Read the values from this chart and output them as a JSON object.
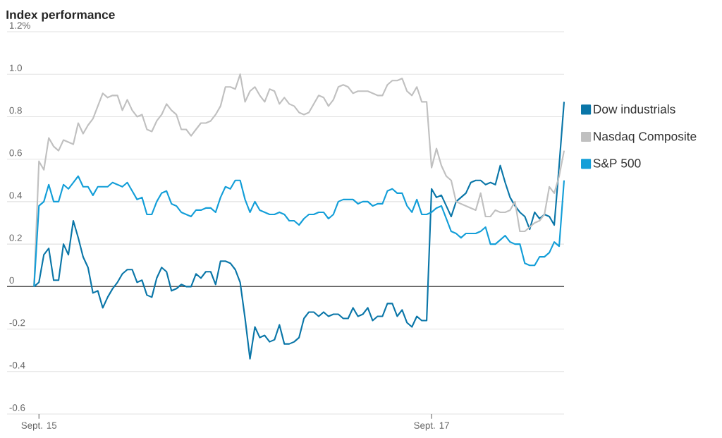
{
  "chart_data": {
    "type": "line",
    "title": "Index performance",
    "categories": [
      null,
      "Sept. 15",
      null,
      null,
      null,
      null,
      null,
      null,
      null,
      null,
      null,
      null,
      null,
      null,
      null,
      null,
      null,
      null,
      null,
      null,
      null,
      null,
      null,
      null,
      null,
      null,
      null,
      null,
      null,
      null,
      null,
      null,
      null,
      null,
      null,
      null,
      null,
      null,
      null,
      null,
      null,
      null,
      null,
      null,
      null,
      null,
      null,
      null,
      null,
      null,
      null,
      null,
      null,
      null,
      null,
      null,
      null,
      null,
      null,
      null,
      null,
      null,
      null,
      null,
      null,
      null,
      null,
      null,
      null,
      null,
      null,
      null,
      null,
      null,
      null,
      null,
      null,
      null,
      null,
      null,
      null,
      "Sept. 17",
      null,
      null,
      null,
      null,
      null,
      null,
      null,
      null,
      null,
      null,
      null,
      null,
      null,
      null,
      null,
      null,
      null,
      null,
      null,
      null,
      null,
      null,
      null,
      null,
      null,
      null,
      null
    ],
    "series": [
      {
        "name": "Dow industrials",
        "color": "#0a76a8",
        "values": [
          0,
          0.02,
          0.15,
          0.18,
          0.03,
          0.03,
          0.2,
          0.15,
          0.31,
          0.23,
          0.14,
          0.09,
          -0.03,
          -0.02,
          -0.1,
          -0.05,
          -0.01,
          0.02,
          0.06,
          0.08,
          0.08,
          0.02,
          0.03,
          -0.04,
          -0.05,
          0.04,
          0.09,
          0.07,
          -0.02,
          -0.01,
          0.01,
          0,
          0,
          0.06,
          0.04,
          0.07,
          0.07,
          0.01,
          0.12,
          0.12,
          0.11,
          0.08,
          0.02,
          -0.15,
          -0.34,
          -0.19,
          -0.24,
          -0.23,
          -0.26,
          -0.25,
          -0.18,
          -0.27,
          -0.27,
          -0.26,
          -0.24,
          -0.15,
          -0.12,
          -0.12,
          -0.14,
          -0.12,
          -0.14,
          -0.13,
          -0.13,
          -0.15,
          -0.15,
          -0.1,
          -0.14,
          -0.13,
          -0.1,
          -0.16,
          -0.14,
          -0.14,
          -0.08,
          -0.08,
          -0.14,
          -0.11,
          -0.17,
          -0.19,
          -0.14,
          -0.16,
          -0.16,
          0.46,
          0.42,
          0.43,
          0.38,
          0.33,
          0.4,
          0.42,
          0.44,
          0.49,
          0.5,
          0.5,
          0.48,
          0.49,
          0.48,
          0.57,
          0.49,
          0.42,
          0.38,
          0.35,
          0.33,
          0.27,
          0.35,
          0.32,
          0.34,
          0.33,
          0.29,
          0.57,
          0.87
        ]
      },
      {
        "name": "Nasdaq Composite",
        "color": "#c0c0c0",
        "values": [
          0,
          0.59,
          0.55,
          0.7,
          0.66,
          0.64,
          0.69,
          0.68,
          0.67,
          0.77,
          0.72,
          0.76,
          0.79,
          0.85,
          0.91,
          0.89,
          0.9,
          0.9,
          0.83,
          0.88,
          0.83,
          0.8,
          0.81,
          0.74,
          0.73,
          0.78,
          0.81,
          0.86,
          0.83,
          0.81,
          0.74,
          0.74,
          0.71,
          0.74,
          0.77,
          0.77,
          0.78,
          0.81,
          0.85,
          0.94,
          0.94,
          0.93,
          1.0,
          0.87,
          0.92,
          0.94,
          0.9,
          0.87,
          0.93,
          0.92,
          0.86,
          0.89,
          0.86,
          0.85,
          0.82,
          0.81,
          0.82,
          0.86,
          0.9,
          0.89,
          0.85,
          0.88,
          0.94,
          0.95,
          0.94,
          0.91,
          0.92,
          0.92,
          0.92,
          0.91,
          0.9,
          0.9,
          0.95,
          0.97,
          0.97,
          0.98,
          0.92,
          0.9,
          0.94,
          0.87,
          0.87,
          0.56,
          0.65,
          0.57,
          0.52,
          0.5,
          0.4,
          0.39,
          0.38,
          0.37,
          0.36,
          0.44,
          0.33,
          0.33,
          0.36,
          0.35,
          0.35,
          0.36,
          0.4,
          0.26,
          0.26,
          0.28,
          0.3,
          0.31,
          0.34,
          0.47,
          0.44,
          0.52,
          0.64
        ]
      },
      {
        "name": "S&P 500",
        "color": "#139ed8",
        "values": [
          0,
          0.38,
          0.4,
          0.48,
          0.4,
          0.4,
          0.48,
          0.46,
          0.49,
          0.52,
          0.47,
          0.47,
          0.43,
          0.47,
          0.47,
          0.47,
          0.49,
          0.48,
          0.47,
          0.49,
          0.45,
          0.41,
          0.42,
          0.34,
          0.34,
          0.4,
          0.44,
          0.45,
          0.39,
          0.38,
          0.35,
          0.34,
          0.33,
          0.36,
          0.36,
          0.37,
          0.37,
          0.35,
          0.42,
          0.47,
          0.46,
          0.5,
          0.5,
          0.41,
          0.35,
          0.4,
          0.36,
          0.35,
          0.34,
          0.34,
          0.35,
          0.34,
          0.31,
          0.31,
          0.29,
          0.32,
          0.34,
          0.34,
          0.35,
          0.35,
          0.32,
          0.34,
          0.4,
          0.41,
          0.41,
          0.41,
          0.39,
          0.4,
          0.4,
          0.38,
          0.39,
          0.39,
          0.45,
          0.46,
          0.44,
          0.44,
          0.38,
          0.35,
          0.41,
          0.34,
          0.34,
          0.35,
          0.37,
          0.38,
          0.32,
          0.26,
          0.25,
          0.23,
          0.25,
          0.25,
          0.25,
          0.26,
          0.28,
          0.2,
          0.2,
          0.22,
          0.24,
          0.21,
          0.2,
          0.2,
          0.11,
          0.1,
          0.1,
          0.14,
          0.14,
          0.16,
          0.21,
          0.19,
          0.5
        ]
      }
    ],
    "ylim": [
      -0.6,
      1.2
    ],
    "yticks": [
      -0.6,
      -0.4,
      -0.2,
      0,
      0.2,
      0.4,
      0.6,
      0.8,
      {
        "value": 1.0,
        "label": "1.0"
      },
      {
        "value": 1.2,
        "label": "1.2%"
      }
    ],
    "ref_lines": [
      {
        "axis": "y",
        "value": 0,
        "color": "#555555"
      }
    ],
    "grid": "y",
    "legend": "right",
    "marker": "none",
    "line_style": "solid"
  }
}
